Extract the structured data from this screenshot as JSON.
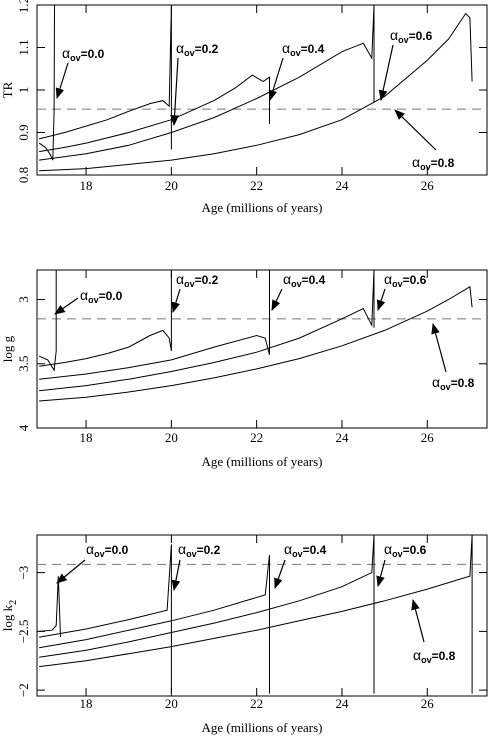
{
  "chart_data": [
    {
      "type": "line",
      "xlabel": "Age (millions of years)",
      "ylabel": "TR",
      "xlim": [
        16.85,
        27.4
      ],
      "xticks": [
        18,
        20,
        22,
        24,
        26
      ],
      "ylim": [
        0.8,
        1.2
      ],
      "yticks": [
        0.8,
        0.9,
        1,
        1.1,
        1.2
      ],
      "reference_line": 0.955,
      "series": [
        {
          "color": "#000000",
          "x": [
            16.9,
            17.05,
            17.15,
            17.22,
            17.25,
            17.26
          ],
          "values": [
            0.875,
            0.865,
            0.85,
            0.835,
            0.95,
            1.2
          ]
        },
        {
          "color": "#000000",
          "x": [
            16.9,
            17.5,
            18,
            18.5,
            19,
            19.5,
            19.8,
            19.95,
            20.0,
            20.0
          ],
          "values": [
            0.885,
            0.9,
            0.915,
            0.93,
            0.95,
            0.968,
            0.975,
            0.962,
            1.2,
            0.86
          ]
        },
        {
          "color": "#000000",
          "x": [
            16.9,
            17.5,
            18,
            19,
            20,
            21,
            21.5,
            21.9,
            22.15,
            22.3,
            22.3
          ],
          "values": [
            0.855,
            0.865,
            0.875,
            0.9,
            0.93,
            0.975,
            1.005,
            1.035,
            1.02,
            1.03,
            0.92
          ]
        },
        {
          "color": "#000000",
          "x": [
            16.9,
            18,
            19,
            20,
            21,
            22,
            23,
            24,
            24.5,
            24.7,
            24.75,
            24.75
          ],
          "values": [
            0.835,
            0.85,
            0.87,
            0.9,
            0.935,
            0.98,
            1.03,
            1.09,
            1.11,
            1.075,
            1.2,
            0.97
          ]
        },
        {
          "color": "#000000",
          "x": [
            16.9,
            18,
            19,
            20,
            21,
            22,
            23,
            24,
            25,
            26,
            26.5,
            26.9,
            27.0,
            27.05
          ],
          "values": [
            0.81,
            0.815,
            0.825,
            0.835,
            0.85,
            0.87,
            0.895,
            0.93,
            0.985,
            1.07,
            1.12,
            1.18,
            1.17,
            1.02
          ]
        }
      ],
      "annotations": [
        {
          "symbol": "α",
          "sub": "ov",
          "text": "=0.0"
        },
        {
          "symbol": "α",
          "sub": "ov",
          "text": "=0.2"
        },
        {
          "symbol": "α",
          "sub": "ov",
          "text": "=0.4"
        },
        {
          "symbol": "α",
          "sub": "ov",
          "text": "=0.6"
        },
        {
          "symbol": "α",
          "sub": "ov",
          "text": "=0.8"
        }
      ]
    },
    {
      "type": "line",
      "xlabel": "Age (millions of years)",
      "ylabel": "log g",
      "xlim": [
        16.85,
        27.4
      ],
      "xticks": [
        18,
        20,
        22,
        24,
        26
      ],
      "ylim": [
        4.0,
        2.77
      ],
      "yticks": [
        3,
        3.5,
        4
      ],
      "reference_line": 3.15,
      "series": [
        {
          "color": "#000000",
          "x": [
            16.9,
            17.1,
            17.25,
            17.3,
            17.3
          ],
          "values": [
            3.44,
            3.47,
            3.55,
            3.4,
            2.77
          ]
        },
        {
          "color": "#000000",
          "x": [
            16.9,
            17.5,
            18,
            18.5,
            19,
            19.5,
            19.8,
            19.95,
            20.0,
            20.0
          ],
          "values": [
            3.52,
            3.49,
            3.46,
            3.42,
            3.37,
            3.28,
            3.24,
            3.3,
            3.4,
            2.77
          ]
        },
        {
          "color": "#000000",
          "x": [
            16.9,
            18,
            19,
            20,
            21,
            22,
            22.2,
            22.3,
            22.3
          ],
          "values": [
            3.62,
            3.58,
            3.53,
            3.47,
            3.37,
            3.28,
            3.3,
            3.43,
            2.77
          ]
        },
        {
          "color": "#000000",
          "x": [
            16.9,
            18,
            19,
            20,
            21,
            22,
            23,
            24,
            24.5,
            24.7,
            24.75,
            24.75
          ],
          "values": [
            3.71,
            3.67,
            3.62,
            3.56,
            3.49,
            3.41,
            3.3,
            3.15,
            3.07,
            3.2,
            2.77,
            3.22
          ]
        },
        {
          "color": "#000000",
          "x": [
            16.9,
            18,
            19,
            20,
            21,
            22,
            23,
            24,
            25,
            26,
            26.5,
            26.9,
            27.0,
            27.05
          ],
          "values": [
            3.79,
            3.76,
            3.72,
            3.67,
            3.61,
            3.54,
            3.46,
            3.36,
            3.24,
            3.09,
            3.0,
            2.92,
            2.9,
            3.06
          ]
        }
      ],
      "annotations": [
        {
          "symbol": "α",
          "sub": "ov",
          "text": "=0.0"
        },
        {
          "symbol": "α",
          "sub": "ov",
          "text": "=0.2"
        },
        {
          "symbol": "α",
          "sub": "ov",
          "text": "=0.4"
        },
        {
          "symbol": "α",
          "sub": "ov",
          "text": "=0.6"
        },
        {
          "symbol": "α",
          "sub": "ov",
          "text": "=0.8"
        }
      ]
    },
    {
      "type": "line",
      "xlabel": "Age (millions of years)",
      "ylabel": "log k",
      "ylabel_sub": "2",
      "xlim": [
        16.85,
        27.4
      ],
      "xticks": [
        18,
        20,
        22,
        24,
        26
      ],
      "ylim": [
        -1.95,
        -3.32
      ],
      "yticks": [
        {
          "value": -3,
          "label": "−3"
        },
        {
          "value": -2.5,
          "label": "−2.5"
        },
        {
          "value": -2,
          "label": "−2"
        }
      ],
      "reference_line": -3.07,
      "series": [
        {
          "color": "#000000",
          "x": [
            16.9,
            17.2,
            17.3,
            17.35,
            17.4
          ],
          "values": [
            -2.5,
            -2.51,
            -2.55,
            -2.97,
            -2.45
          ]
        },
        {
          "color": "#000000",
          "x": [
            16.9,
            18,
            19,
            19.9,
            20.0,
            20.0
          ],
          "values": [
            -2.45,
            -2.52,
            -2.6,
            -2.68,
            -3.24,
            -1.98
          ]
        },
        {
          "color": "#000000",
          "x": [
            16.9,
            18,
            19,
            20,
            21,
            22.2,
            22.3,
            22.3
          ],
          "values": [
            -2.36,
            -2.43,
            -2.51,
            -2.59,
            -2.68,
            -2.81,
            -3.15,
            -1.97
          ]
        },
        {
          "color": "#000000",
          "x": [
            16.9,
            18,
            19,
            20,
            21,
            22,
            23,
            24,
            24.7,
            24.75,
            24.75
          ],
          "values": [
            -2.28,
            -2.34,
            -2.41,
            -2.49,
            -2.57,
            -2.66,
            -2.76,
            -2.88,
            -3.0,
            -3.32,
            -1.97
          ]
        },
        {
          "color": "#000000",
          "x": [
            16.9,
            18,
            19,
            20,
            21,
            22,
            23,
            24,
            25,
            26,
            27.0,
            27.05,
            27.05
          ],
          "values": [
            -2.2,
            -2.25,
            -2.31,
            -2.37,
            -2.44,
            -2.51,
            -2.59,
            -2.67,
            -2.76,
            -2.86,
            -2.97,
            -3.32,
            -1.97
          ]
        }
      ],
      "annotations": [
        {
          "symbol": "α",
          "sub": "ov",
          "text": "=0.0"
        },
        {
          "symbol": "α",
          "sub": "ov",
          "text": "=0.2"
        },
        {
          "symbol": "α",
          "sub": "ov",
          "text": "=0.4"
        },
        {
          "symbol": "α",
          "sub": "ov",
          "text": "=0.6"
        },
        {
          "symbol": "α",
          "sub": "ov",
          "text": "=0.8"
        }
      ]
    }
  ]
}
